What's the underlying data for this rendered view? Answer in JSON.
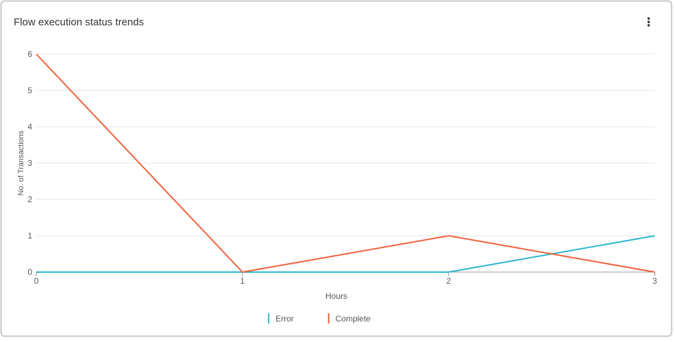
{
  "chart_data": {
    "type": "line",
    "title": "Flow execution status trends",
    "x_label": "Hours",
    "y_label": "No. of Transactions",
    "x": [
      0,
      1,
      2,
      3
    ],
    "series": [
      {
        "name": "Error",
        "color": "#2bb5cf",
        "values": [
          0,
          0,
          0,
          1
        ]
      },
      {
        "name": "Complete",
        "color": "#f0603a",
        "values": [
          6,
          0,
          1,
          0
        ]
      }
    ],
    "xlim": [
      0,
      3
    ],
    "xticks": [
      0,
      1,
      2,
      3
    ],
    "ylim": [
      0,
      6
    ],
    "yticks": [
      0,
      1,
      2,
      3,
      4,
      5,
      6
    ],
    "grid": true,
    "legend": "bottom"
  }
}
